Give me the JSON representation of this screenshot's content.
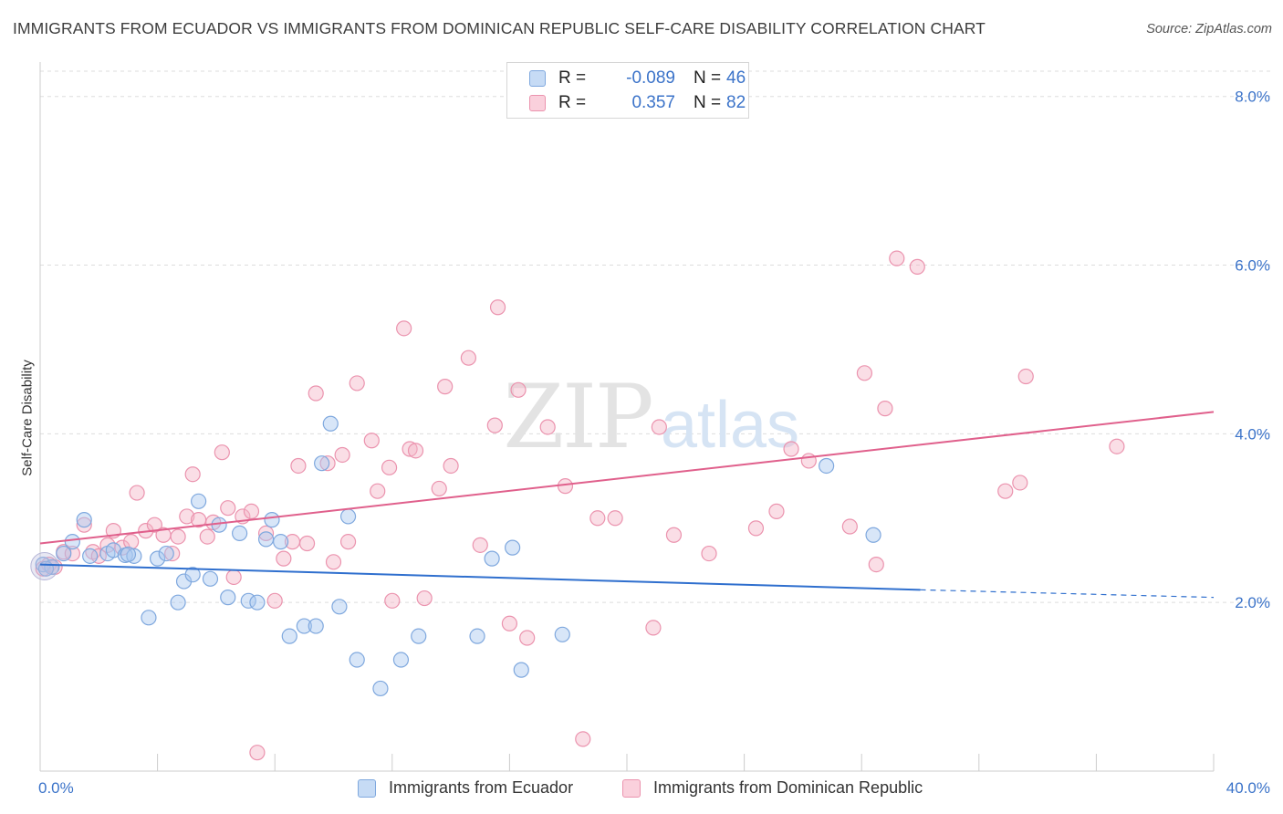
{
  "title": "IMMIGRANTS FROM ECUADOR VS IMMIGRANTS FROM DOMINICAN REPUBLIC SELF-CARE DISABILITY CORRELATION CHART",
  "source": "Source: ZipAtlas.com",
  "watermark": {
    "zip": "ZIP",
    "atlas": "atlas"
  },
  "legend": {
    "rows": [
      {
        "r_label": "R =",
        "r_value": "-0.089",
        "n_label": "N =",
        "n_value": "46",
        "color": "#a8c8f0"
      },
      {
        "r_label": "R =",
        "r_value": "0.357",
        "n_label": "N =",
        "n_value": "82",
        "color": "#f6b8cb"
      }
    ]
  },
  "bottom_legend": [
    {
      "label": "Immigrants from Ecuador",
      "color": "#a8c8f0"
    },
    {
      "label": "Immigrants from Dominican Republic",
      "color": "#f6b8cb"
    }
  ],
  "colors": {
    "ecuador_point": "#a8c8f0",
    "ecuador_line": "#2f6fce",
    "dominican_point": "#f4b6c8",
    "dominican_line": "#e0608c",
    "axis_label": "#3b73c9",
    "grid": "#dddddd"
  },
  "chart_data": {
    "type": "scatter",
    "title": "IMMIGRANTS FROM ECUADOR VS IMMIGRANTS FROM DOMINICAN REPUBLIC SELF-CARE DISABILITY CORRELATION CHART",
    "xlabel": "",
    "ylabel": "Self-Care Disability",
    "xlim": [
      0,
      40
    ],
    "ylim": [
      0,
      8.3
    ],
    "x_tick_labels": [
      "0.0%",
      "40.0%"
    ],
    "y_ticks": [
      2,
      4,
      6,
      8
    ],
    "y_tick_labels": [
      "2.0%",
      "4.0%",
      "6.0%",
      "8.0%"
    ],
    "grid": "horizontal dashed",
    "legend_position": "top-center",
    "series": [
      {
        "name": "Immigrants from Ecuador",
        "color": "#a8c8f0",
        "trend": {
          "x": [
            0,
            30.0
          ],
          "y": [
            2.45,
            2.15
          ],
          "dashed_extension_to_x": 40.0,
          "dashed_y_end": 2.06
        },
        "points": [
          [
            0.1,
            2.45
          ],
          [
            0.4,
            2.42
          ],
          [
            0.8,
            2.58
          ],
          [
            1.1,
            2.72
          ],
          [
            1.5,
            2.98
          ],
          [
            1.7,
            2.55
          ],
          [
            2.3,
            2.58
          ],
          [
            2.5,
            2.62
          ],
          [
            2.9,
            2.56
          ],
          [
            3.2,
            2.55
          ],
          [
            3.7,
            1.82
          ],
          [
            4.0,
            2.52
          ],
          [
            4.3,
            2.58
          ],
          [
            4.7,
            2.0
          ],
          [
            4.9,
            2.25
          ],
          [
            5.2,
            2.33
          ],
          [
            5.4,
            3.2
          ],
          [
            5.8,
            2.28
          ],
          [
            6.1,
            2.92
          ],
          [
            6.4,
            2.06
          ],
          [
            6.8,
            2.82
          ],
          [
            7.1,
            2.02
          ],
          [
            7.4,
            2.0
          ],
          [
            7.7,
            2.75
          ],
          [
            7.9,
            2.98
          ],
          [
            8.2,
            2.72
          ],
          [
            8.5,
            1.6
          ],
          [
            9.0,
            1.72
          ],
          [
            9.4,
            1.72
          ],
          [
            9.6,
            3.65
          ],
          [
            9.9,
            4.12
          ],
          [
            10.2,
            1.95
          ],
          [
            10.5,
            3.02
          ],
          [
            10.8,
            1.32
          ],
          [
            11.6,
            0.98
          ],
          [
            12.3,
            1.32
          ],
          [
            12.9,
            1.6
          ],
          [
            14.9,
            1.6
          ],
          [
            15.4,
            2.52
          ],
          [
            16.1,
            2.65
          ],
          [
            16.4,
            1.2
          ],
          [
            17.8,
            1.62
          ],
          [
            26.8,
            3.62
          ],
          [
            28.4,
            2.8
          ],
          [
            0.2,
            2.4
          ],
          [
            3.0,
            2.57
          ]
        ]
      },
      {
        "name": "Immigrants from Dominican Republic",
        "color": "#f4b6c8",
        "trend": {
          "x": [
            0,
            40
          ],
          "y": [
            2.7,
            4.26
          ]
        },
        "points": [
          [
            0.1,
            2.4
          ],
          [
            0.3,
            2.45
          ],
          [
            0.5,
            2.42
          ],
          [
            0.8,
            2.6
          ],
          [
            1.1,
            2.58
          ],
          [
            1.5,
            2.92
          ],
          [
            1.8,
            2.6
          ],
          [
            2.0,
            2.55
          ],
          [
            2.3,
            2.68
          ],
          [
            2.5,
            2.85
          ],
          [
            2.8,
            2.65
          ],
          [
            3.1,
            2.72
          ],
          [
            3.3,
            3.3
          ],
          [
            3.6,
            2.85
          ],
          [
            3.9,
            2.92
          ],
          [
            4.2,
            2.8
          ],
          [
            4.5,
            2.58
          ],
          [
            4.7,
            2.78
          ],
          [
            5.0,
            3.02
          ],
          [
            5.2,
            3.52
          ],
          [
            5.4,
            2.98
          ],
          [
            5.7,
            2.78
          ],
          [
            5.9,
            2.95
          ],
          [
            6.2,
            3.78
          ],
          [
            6.4,
            3.12
          ],
          [
            6.6,
            2.3
          ],
          [
            6.9,
            3.02
          ],
          [
            7.2,
            3.08
          ],
          [
            7.4,
            0.22
          ],
          [
            7.7,
            2.82
          ],
          [
            8.0,
            2.02
          ],
          [
            8.3,
            2.52
          ],
          [
            8.6,
            2.72
          ],
          [
            8.8,
            3.62
          ],
          [
            9.1,
            2.7
          ],
          [
            9.4,
            4.48
          ],
          [
            9.8,
            3.65
          ],
          [
            10.0,
            2.48
          ],
          [
            10.3,
            3.75
          ],
          [
            10.5,
            2.72
          ],
          [
            10.8,
            4.6
          ],
          [
            11.3,
            3.92
          ],
          [
            11.5,
            3.32
          ],
          [
            11.9,
            3.6
          ],
          [
            12.0,
            2.02
          ],
          [
            12.4,
            5.25
          ],
          [
            12.6,
            3.82
          ],
          [
            12.8,
            3.8
          ],
          [
            13.1,
            2.05
          ],
          [
            13.6,
            3.35
          ],
          [
            13.8,
            4.56
          ],
          [
            14.0,
            3.62
          ],
          [
            14.6,
            4.9
          ],
          [
            15.0,
            2.68
          ],
          [
            15.5,
            4.1
          ],
          [
            15.6,
            5.5
          ],
          [
            16.0,
            1.75
          ],
          [
            16.3,
            4.52
          ],
          [
            16.6,
            1.58
          ],
          [
            17.3,
            4.08
          ],
          [
            17.9,
            3.38
          ],
          [
            18.5,
            0.38
          ],
          [
            19.0,
            3.0
          ],
          [
            19.6,
            3.0
          ],
          [
            20.9,
            1.7
          ],
          [
            21.1,
            4.08
          ],
          [
            21.6,
            2.8
          ],
          [
            22.8,
            2.58
          ],
          [
            24.4,
            2.88
          ],
          [
            25.1,
            3.08
          ],
          [
            25.6,
            3.82
          ],
          [
            26.2,
            3.68
          ],
          [
            27.6,
            2.9
          ],
          [
            28.1,
            4.72
          ],
          [
            28.5,
            2.45
          ],
          [
            28.8,
            4.3
          ],
          [
            29.2,
            6.08
          ],
          [
            29.9,
            5.98
          ],
          [
            32.9,
            3.32
          ],
          [
            33.4,
            3.42
          ],
          [
            33.6,
            4.68
          ],
          [
            36.7,
            3.85
          ]
        ]
      }
    ]
  }
}
